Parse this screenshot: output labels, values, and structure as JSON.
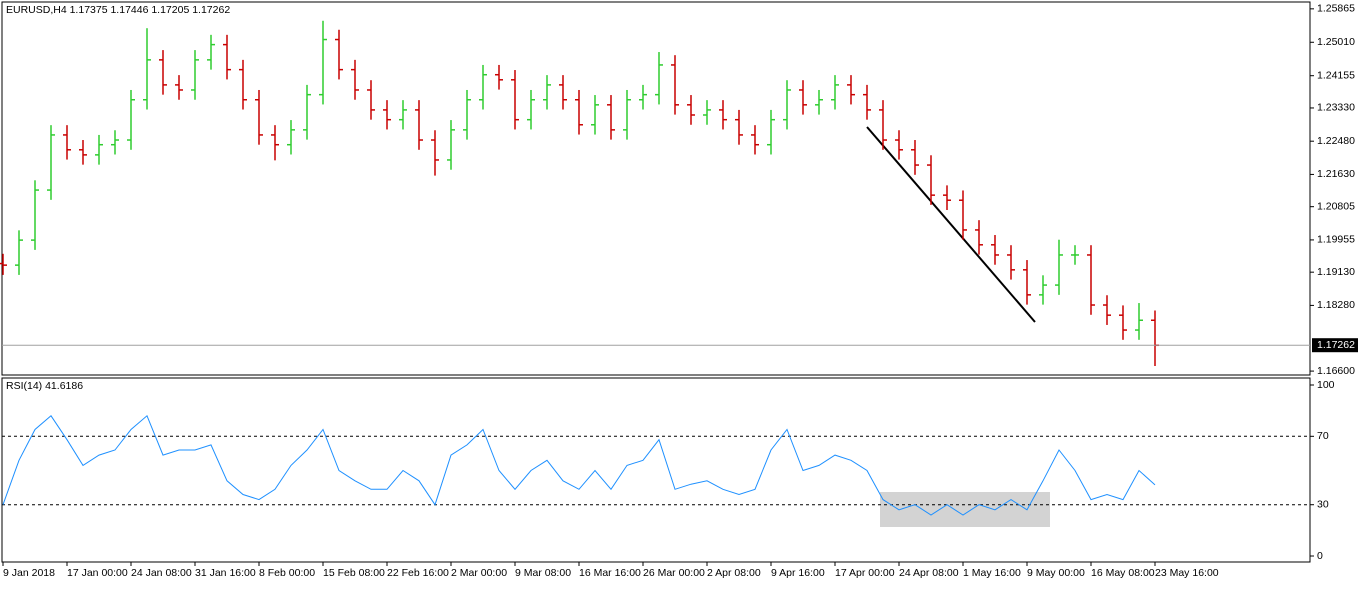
{
  "chart_data": [
    {
      "type": "ohlc",
      "title": "EURUSD,H4  1.17375 1.17446 1.17205 1.17262",
      "up_color": "#2fcc2f",
      "down_color": "#c80000",
      "open": [
        1.1935,
        1.1931,
        1.1995,
        1.2123,
        1.2264,
        1.2226,
        1.2213,
        1.2239,
        1.2251,
        1.2354,
        1.2456,
        1.2392,
        1.2379,
        1.2456,
        1.2495,
        1.2431,
        1.2354,
        1.2264,
        1.2239,
        1.2277,
        1.2367,
        1.2508,
        1.2431,
        1.2379,
        1.2328,
        1.2303,
        1.2328,
        1.2251,
        1.22,
        1.2277,
        1.2354,
        1.2418,
        1.2405,
        1.2303,
        1.2354,
        1.2392,
        1.2354,
        1.229,
        1.2341,
        1.2277,
        1.2354,
        1.2367,
        1.2443,
        1.2341,
        1.2315,
        1.2328,
        1.2303,
        1.2264,
        1.2239,
        1.2303,
        1.2379,
        1.2341,
        1.2354,
        1.2392,
        1.2367,
        1.2328,
        1.2251,
        1.2226,
        1.2187,
        1.211,
        1.2097,
        1.2021,
        1.1983,
        1.1957,
        1.1919,
        1.1855,
        1.188,
        1.1957,
        1.1957,
        1.1829,
        1.1803,
        1.1765,
        1.179
      ],
      "high": [
        1.196,
        1.202,
        1.2148,
        1.2289,
        1.2289,
        1.2251,
        1.2264,
        1.2276,
        1.2379,
        1.2537,
        1.2481,
        1.2417,
        1.2481,
        1.252,
        1.252,
        1.2456,
        1.2379,
        1.2289,
        1.2302,
        1.2392,
        1.2556,
        1.2533,
        1.2456,
        1.2404,
        1.2353,
        1.2353,
        1.2353,
        1.2276,
        1.2302,
        1.2379,
        1.2443,
        1.2443,
        1.243,
        1.2379,
        1.2417,
        1.2417,
        1.2379,
        1.2366,
        1.2366,
        1.2379,
        1.2392,
        1.2476,
        1.2468,
        1.2366,
        1.2353,
        1.2353,
        1.2328,
        1.2289,
        1.2328,
        1.2404,
        1.2404,
        1.2379,
        1.2417,
        1.2417,
        1.2392,
        1.2353,
        1.2276,
        1.2251,
        1.2212,
        1.2135,
        1.2122,
        1.2046,
        1.2008,
        1.1982,
        1.1944,
        1.1905,
        1.1996,
        1.1982,
        1.1982,
        1.1854,
        1.1828,
        1.1834,
        1.1815
      ],
      "low": [
        1.1906,
        1.1906,
        1.197,
        1.2098,
        1.2201,
        1.2188,
        1.2188,
        1.2214,
        1.2226,
        1.2329,
        1.2367,
        1.2354,
        1.2354,
        1.2431,
        1.2406,
        1.2329,
        1.2239,
        1.2199,
        1.2214,
        1.2252,
        1.2342,
        1.2406,
        1.2354,
        1.2303,
        1.2278,
        1.2278,
        1.2226,
        1.216,
        1.2175,
        1.2252,
        1.2329,
        1.238,
        1.2278,
        1.2278,
        1.2329,
        1.2329,
        1.2265,
        1.2265,
        1.2252,
        1.2252,
        1.2329,
        1.2342,
        1.2316,
        1.229,
        1.229,
        1.2278,
        1.2239,
        1.2214,
        1.2214,
        1.2278,
        1.2316,
        1.2316,
        1.2329,
        1.2342,
        1.2303,
        1.2226,
        1.2201,
        1.2162,
        1.2085,
        1.2072,
        1.1996,
        1.1958,
        1.1932,
        1.1894,
        1.183,
        1.183,
        1.1855,
        1.1932,
        1.1804,
        1.1778,
        1.174,
        1.174,
        1.1673
      ],
      "close": [
        1.1931,
        1.1995,
        1.2123,
        1.2264,
        1.2226,
        1.2213,
        1.2239,
        1.2251,
        1.2354,
        1.2456,
        1.2392,
        1.2379,
        1.2456,
        1.2495,
        1.2431,
        1.2354,
        1.2264,
        1.2239,
        1.2277,
        1.2367,
        1.2508,
        1.2431,
        1.2379,
        1.2328,
        1.2303,
        1.2328,
        1.2251,
        1.22,
        1.2277,
        1.2354,
        1.2418,
        1.2405,
        1.2303,
        1.2354,
        1.2392,
        1.2354,
        1.229,
        1.2341,
        1.2277,
        1.2354,
        1.2367,
        1.2443,
        1.2341,
        1.2315,
        1.2328,
        1.2303,
        1.2264,
        1.2239,
        1.2303,
        1.2379,
        1.2341,
        1.2354,
        1.2392,
        1.2367,
        1.2328,
        1.2251,
        1.2226,
        1.2187,
        1.211,
        1.2097,
        1.2021,
        1.1983,
        1.1957,
        1.1919,
        1.1855,
        1.188,
        1.1957,
        1.1957,
        1.1829,
        1.1803,
        1.1765,
        1.179,
        1.1726
      ],
      "last_price": 1.17262,
      "ylim": [
        1.165,
        1.2604
      ],
      "yticks": [
        1.25865,
        {
          "value": 1.2501,
          "label": "1.25010"
        },
        1.24155,
        {
          "value": 1.2333,
          "label": "1.23330"
        },
        {
          "value": 1.2248,
          "label": "1.22480"
        },
        {
          "value": 1.2163,
          "label": "1.21630"
        },
        1.20805,
        1.19955,
        {
          "value": 1.1913,
          "label": "1.19130"
        },
        {
          "value": 1.1828,
          "label": "1.18280"
        },
        {
          "value": 1.166,
          "label": "1.16600"
        }
      ]
    },
    {
      "type": "line",
      "title": "RSI(14) 41.6186",
      "color": "#1e90ff",
      "categories": [
        "9 Jan 2018",
        null,
        null,
        null,
        "17 Jan 00:00",
        null,
        null,
        null,
        "24 Jan 08:00",
        null,
        null,
        null,
        "31 Jan 16:00",
        null,
        null,
        null,
        "8 Feb 00:00",
        null,
        null,
        null,
        "15 Feb 08:00",
        null,
        null,
        null,
        "22 Feb 16:00",
        null,
        null,
        null,
        "2 Mar 00:00",
        null,
        null,
        null,
        "9 Mar 08:00",
        null,
        null,
        null,
        "16 Mar 16:00",
        null,
        null,
        null,
        "26 Mar 00:00",
        null,
        null,
        null,
        "2 Apr 08:00",
        null,
        null,
        null,
        "9 Apr 16:00",
        null,
        null,
        null,
        "17 Apr 00:00",
        null,
        null,
        null,
        "24 Apr 08:00",
        null,
        null,
        null,
        "1 May 16:00",
        null,
        null,
        null,
        "9 May 00:00",
        null,
        null,
        null,
        "16 May 08:00",
        null,
        null,
        null,
        "23 May 16:00"
      ],
      "values": [
        30,
        56,
        74,
        82,
        68,
        53,
        59,
        62,
        74,
        82,
        59,
        62,
        62,
        65,
        44,
        36,
        33,
        39,
        53,
        62,
        74,
        50,
        44,
        39,
        39,
        50,
        44,
        30,
        59,
        65,
        74,
        50,
        39,
        50,
        56,
        44,
        39,
        50,
        39,
        53,
        56,
        68,
        39,
        42,
        44,
        39,
        36,
        39,
        62,
        74,
        50,
        53,
        59,
        56,
        50,
        33,
        27,
        30,
        24,
        30,
        24,
        30,
        27,
        33,
        27,
        44,
        62,
        50,
        33,
        36,
        33,
        50,
        41.6
      ],
      "levels": [
        70,
        30
      ],
      "ylim": [
        -3.5,
        104.1
      ],
      "yticks": [
        100,
        70,
        30,
        0
      ]
    }
  ]
}
